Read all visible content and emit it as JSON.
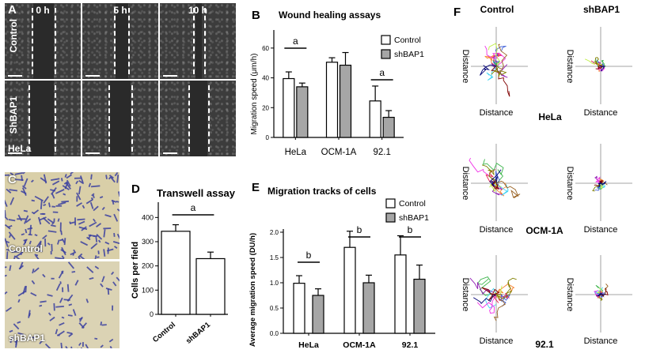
{
  "panel_letters": {
    "a": "A",
    "b": "B",
    "c": "C",
    "d": "D",
    "e": "E",
    "f": "F"
  },
  "panel_a": {
    "time_labels": [
      "0 h",
      "5 h",
      "10 h"
    ],
    "row_labels": [
      "Control",
      "ShBAP1"
    ],
    "cell_line": "HeLa"
  },
  "panel_c": {
    "labels": [
      "Control",
      "shBAP1"
    ],
    "stain_color": "#3a3fa0"
  },
  "colors": {
    "control": "#ffffff",
    "shbap1": "#a6a6a6",
    "microscopy": "#3c3c3c",
    "stain_bg": "#d9cfa8"
  },
  "panel_f": {
    "col_labels": [
      "Control",
      "shBAP1"
    ],
    "row_labels": [
      "HeLa",
      "OCM-1A",
      "92.1"
    ],
    "axis_label": "Distance"
  },
  "chart_data": [
    {
      "id": "B",
      "type": "bar",
      "title": "Wound healing assays",
      "ylabel": "Migration speed (μm/h)",
      "xlabel": "",
      "categories": [
        "HeLa",
        "OCM-1A",
        "92.1"
      ],
      "series": [
        {
          "name": "Control",
          "values": [
            39.5,
            50.5,
            24.5
          ],
          "errors": [
            4.5,
            3,
            10
          ]
        },
        {
          "name": "shBAP1",
          "values": [
            34,
            48.5,
            13.5
          ],
          "errors": [
            2.5,
            8.5,
            4.5
          ]
        }
      ],
      "ylim": [
        0,
        70
      ],
      "yticks": [
        0,
        20,
        40,
        60
      ],
      "significance": [
        {
          "category": "HeLa",
          "label": "a"
        },
        {
          "category": "92.1",
          "label": "a"
        }
      ],
      "legend": "top-right",
      "grid": false
    },
    {
      "id": "D",
      "type": "bar",
      "title": "Transwell assay",
      "ylabel": "Cells per field",
      "xlabel": "",
      "categories": [
        "Control",
        "shBAP1"
      ],
      "values": [
        343,
        230
      ],
      "errors": [
        27,
        27
      ],
      "ylim": [
        0,
        450
      ],
      "yticks": [
        0,
        100,
        200,
        300,
        400
      ],
      "significance": [
        {
          "category": "Control-shBAP1",
          "label": "a"
        }
      ],
      "grid": false
    },
    {
      "id": "E",
      "type": "bar",
      "title": "Migration tracks of cells",
      "ylabel": "Average migration speed (DU/h)",
      "xlabel": "",
      "categories": [
        "HeLa",
        "OCM-1A",
        "92.1"
      ],
      "series": [
        {
          "name": "Control",
          "values": [
            0.99,
            1.7,
            1.55
          ],
          "errors": [
            0.15,
            0.32,
            0.38
          ]
        },
        {
          "name": "shBAP1",
          "values": [
            0.75,
            1.0,
            1.07
          ],
          "errors": [
            0.13,
            0.15,
            0.28
          ]
        }
      ],
      "ylim": [
        0,
        2.0
      ],
      "yticks": [
        0.0,
        0.5,
        1.0,
        1.5,
        2.0
      ],
      "significance": [
        {
          "category": "HeLa",
          "label": "b"
        },
        {
          "category": "OCM-1A",
          "label": "b"
        },
        {
          "category": "92.1",
          "label": "b"
        }
      ],
      "legend": "top-right",
      "grid": false
    }
  ]
}
